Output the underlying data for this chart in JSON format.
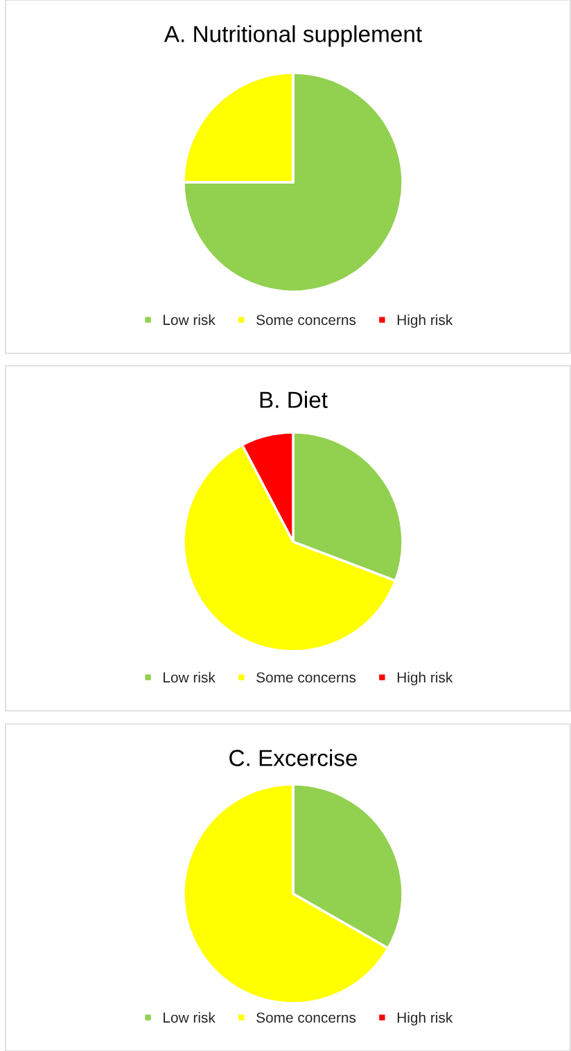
{
  "chart_data": [
    {
      "type": "pie",
      "title": "A. Nutritional supplement",
      "categories": [
        "Low risk",
        "Some concerns",
        "High risk"
      ],
      "values": [
        75,
        25,
        0
      ],
      "colors": [
        "#92d050",
        "#ffff00",
        "#ff0000"
      ],
      "legend": "bottom"
    },
    {
      "type": "pie",
      "title": "B. Diet",
      "categories": [
        "Low risk",
        "Some concerns",
        "High risk"
      ],
      "values": [
        30.8,
        61.5,
        7.7
      ],
      "colors": [
        "#92d050",
        "#ffff00",
        "#ff0000"
      ],
      "legend": "bottom"
    },
    {
      "type": "pie",
      "title": "C. Excercise",
      "categories": [
        "Low risk",
        "Some concerns",
        "High risk"
      ],
      "values": [
        33.3,
        66.7,
        0
      ],
      "colors": [
        "#92d050",
        "#ffff00",
        "#ff0000"
      ],
      "legend": "bottom"
    }
  ]
}
